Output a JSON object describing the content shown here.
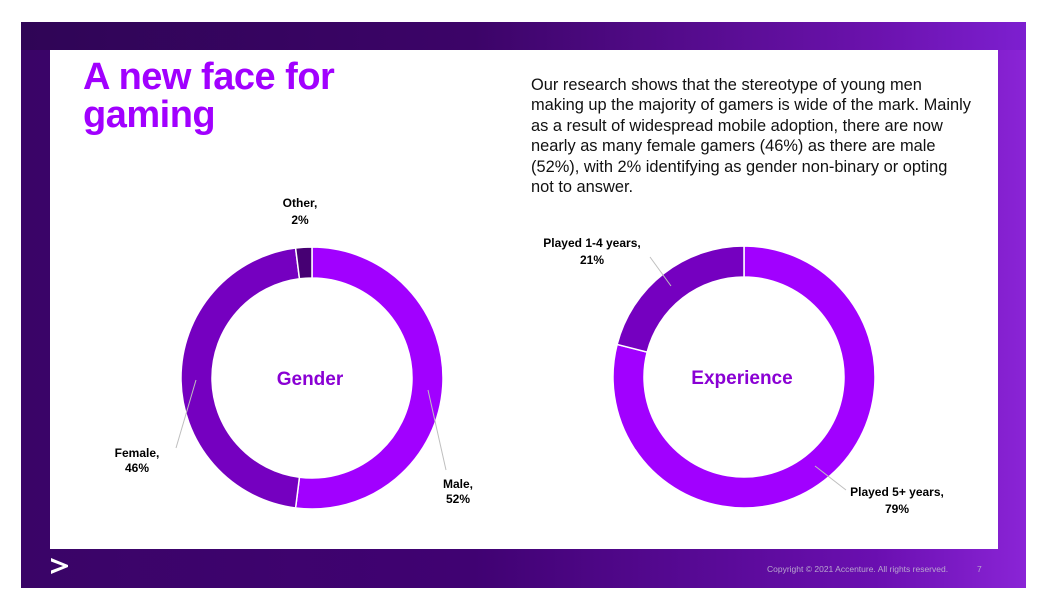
{
  "slide": {
    "title": "A new face for gaming",
    "intro": "Our research shows that the stereotype of young men making up the majority of gamers is wide of the mark. Mainly as a result of widespread mobile adoption, there are now nearly as many female gamers (46%) as there are male (52%), with 2% identifying as gender non-binary or opting not to answer.",
    "footer": {
      "logo_icon": "accenture-greater-than-icon",
      "copyright": "Copyright © 2021 Accenture. All rights reserved.",
      "page_number": "7"
    }
  },
  "colors": {
    "brand_purple": "#a100ff",
    "dark_purple": "#7500c0",
    "darker_purple": "#460073"
  },
  "chart_data": [
    {
      "type": "pie",
      "variant": "donut",
      "center_label": "Gender",
      "slices": [
        {
          "label": "Male",
          "value": 52,
          "display": "52%",
          "color": "#a100ff"
        },
        {
          "label": "Female",
          "value": 46,
          "display": "46%",
          "color": "#7500c0"
        },
        {
          "label": "Other",
          "value": 2,
          "display": "2%",
          "color": "#460073"
        }
      ]
    },
    {
      "type": "pie",
      "variant": "donut",
      "center_label": "Experience",
      "slices": [
        {
          "label": "Played 5+ years",
          "value": 79,
          "display": "79%",
          "color": "#a100ff"
        },
        {
          "label": "Played 1-4 years",
          "value": 21,
          "display": "21%",
          "color": "#7500c0"
        }
      ]
    }
  ]
}
